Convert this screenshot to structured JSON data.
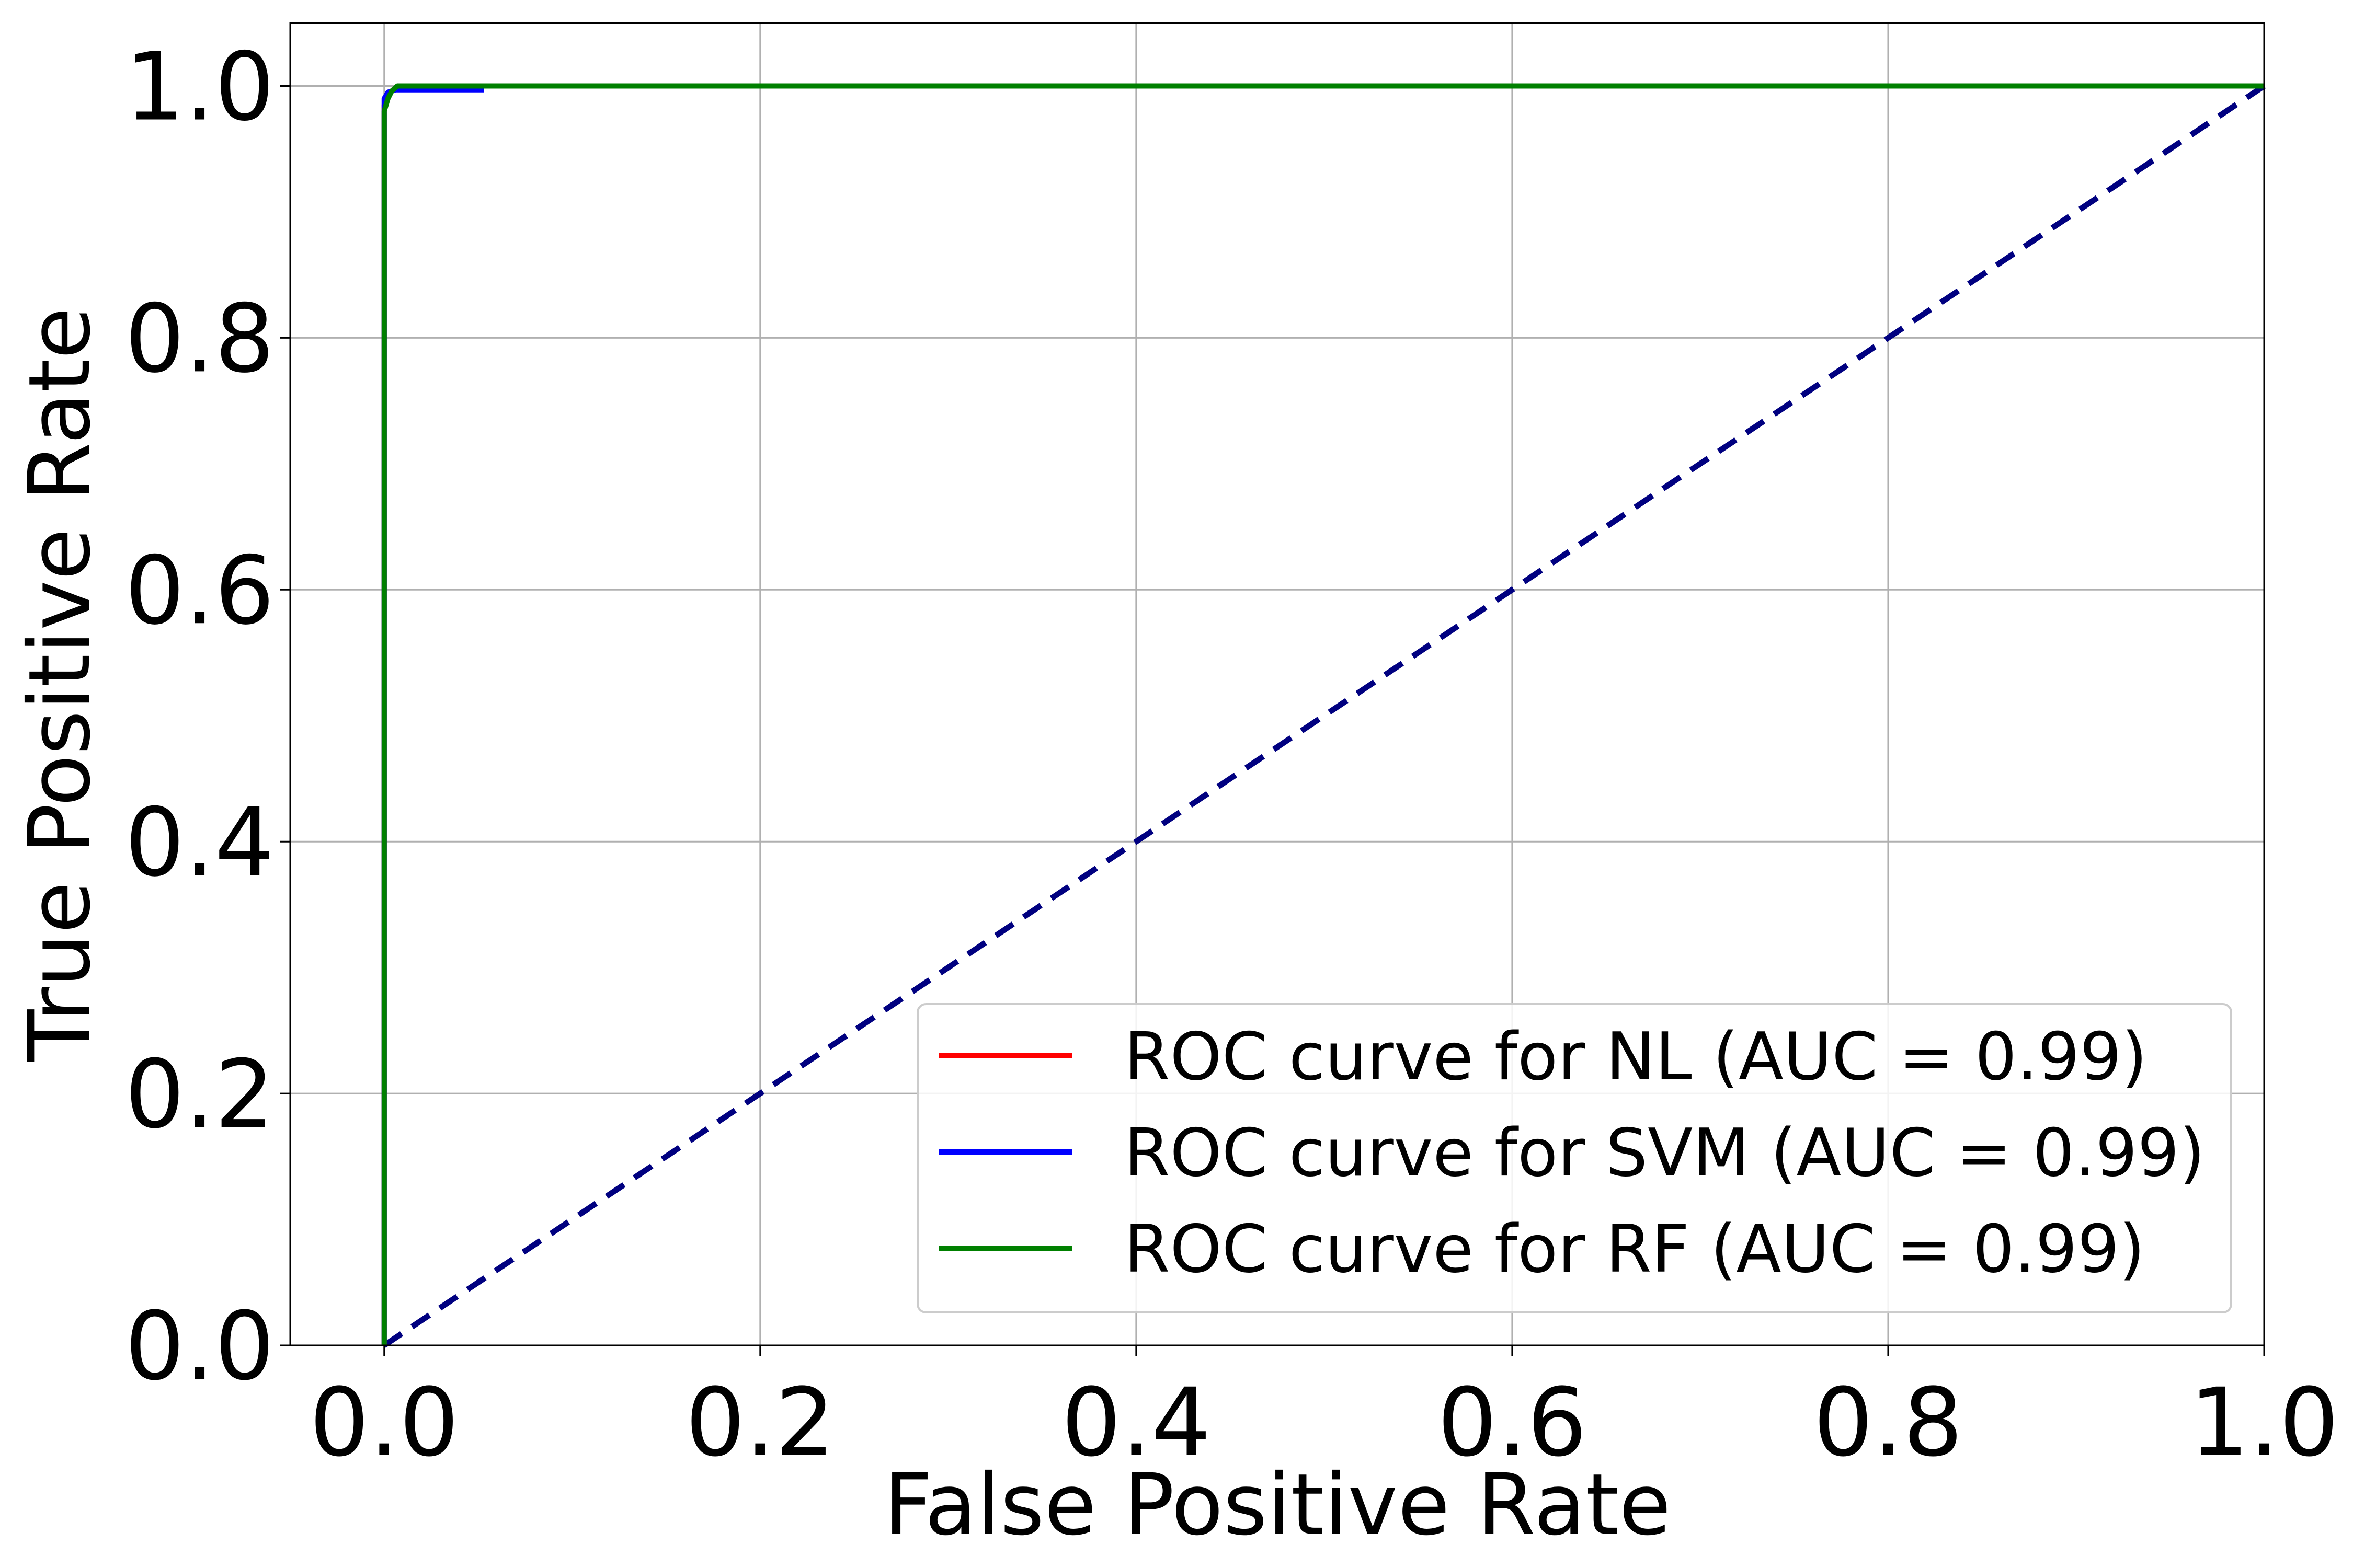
{
  "chart_data": {
    "type": "line",
    "title": "",
    "xlabel": "False Positive Rate",
    "ylabel": "True Positive Rate",
    "xlim": [
      -0.05,
      1.0
    ],
    "ylim": [
      0.0,
      1.05
    ],
    "x_ticks": [
      0.0,
      0.2,
      0.4,
      0.6,
      0.8,
      1.0
    ],
    "x_tick_labels": [
      "0.0",
      "0.2",
      "0.4",
      "0.6",
      "0.8",
      "1.0"
    ],
    "y_ticks": [
      0.0,
      0.2,
      0.4,
      0.6,
      0.8,
      1.0
    ],
    "y_tick_labels": [
      "0.0",
      "0.2",
      "0.4",
      "0.6",
      "0.8",
      "1.0"
    ],
    "grid": true,
    "legend_position": "lower-right",
    "series": [
      {
        "name": "ROC curve for NL (AUC = 0.99)",
        "color": "#ff0000",
        "style": "solid",
        "x": [
          0.0,
          0.0,
          0.002,
          0.004,
          0.006,
          0.01,
          1.0
        ],
        "y": [
          0.0,
          0.985,
          0.993,
          0.996,
          0.998,
          1.0,
          1.0
        ]
      },
      {
        "name": "ROC curve for SVM (AUC = 0.99)",
        "color": "#0000ff",
        "style": "solid",
        "x": [
          0.0,
          0.0,
          0.002,
          0.006,
          0.053,
          0.053
        ],
        "y": [
          0.0,
          0.99,
          0.995,
          0.997,
          0.997,
          0.997
        ]
      },
      {
        "name": "ROC curve for RF (AUC = 0.99)",
        "color": "#008000",
        "style": "solid",
        "x": [
          0.0,
          0.0,
          0.002,
          0.004,
          0.007,
          1.0
        ],
        "y": [
          0.0,
          0.98,
          0.99,
          0.996,
          1.0,
          1.0
        ]
      }
    ],
    "reference_line": {
      "color": "#000080",
      "style": "dashed",
      "x": [
        0.0,
        1.0
      ],
      "y": [
        0.0,
        1.0
      ]
    }
  }
}
